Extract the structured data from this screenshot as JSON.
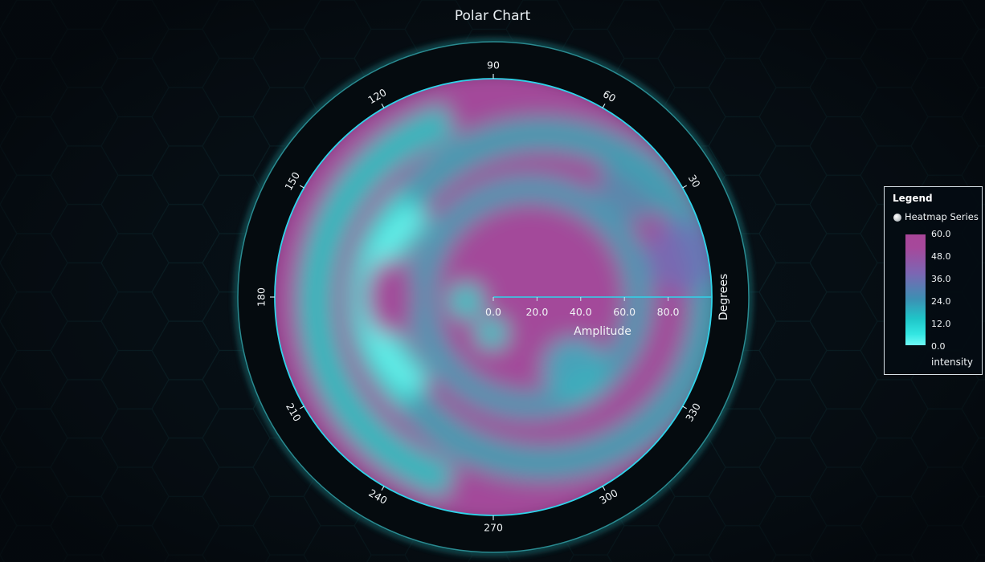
{
  "chart_data": {
    "type": "heatmap",
    "coordinate_system": "polar",
    "title": "Polar Chart",
    "angular_axis": {
      "label": "Degrees",
      "tick_labels": [
        "90",
        "60",
        "30",
        "330",
        "300",
        "270",
        "240",
        "210",
        "180",
        "150",
        "120"
      ],
      "tick_values": [
        90,
        60,
        30,
        330,
        300,
        270,
        240,
        210,
        180,
        150,
        120
      ]
    },
    "radial_axis": {
      "label": "Amplitude",
      "range": [
        0,
        100
      ],
      "tick_labels": [
        "0.0",
        "20.0",
        "40.0",
        "60.0",
        "80.0"
      ],
      "tick_values": [
        0,
        20,
        40,
        60,
        80
      ]
    },
    "series": [
      {
        "name": "Heatmap Series",
        "value_name": "intensity",
        "range": [
          0,
          60
        ]
      }
    ],
    "intensity_scale": [
      "#6ffaf6",
      "#33e6e2",
      "#1fc5c8",
      "#3d8fb3",
      "#7c66b3",
      "#a6489b"
    ],
    "legend": {
      "title": "Legend",
      "placement": "right",
      "tick_labels": [
        "60.0",
        "48.0",
        "36.0",
        "24.0",
        "12.0",
        "0.0"
      ],
      "unit": "intensity"
    }
  }
}
